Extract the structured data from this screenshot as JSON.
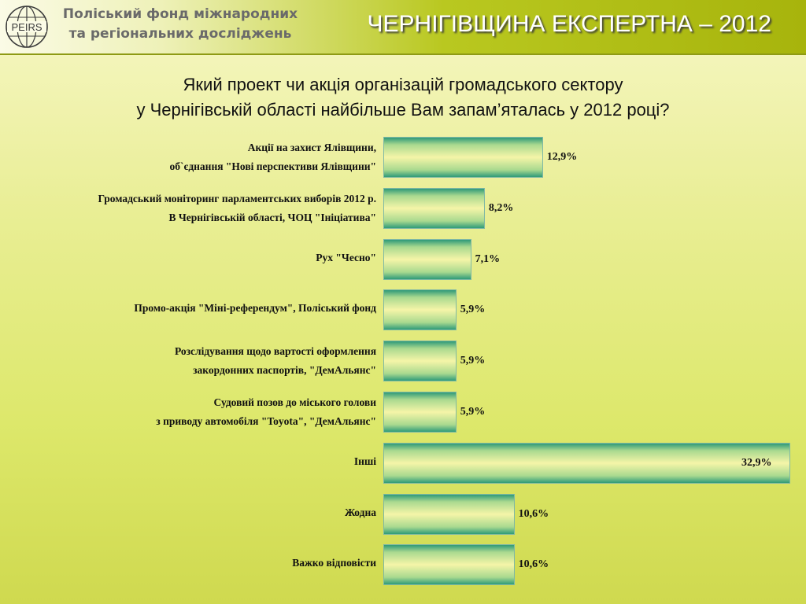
{
  "header": {
    "logo_text": "PEIRS",
    "org_line1": "Поліський фонд міжнародних",
    "org_line2": "та регіональних досліджень",
    "title": "ЧЕРНІГІВЩИНА ЕКСПЕРТНА – 2012"
  },
  "question": {
    "line1": "Який проект чи акція організацій громадського сектору",
    "line2": "у Чернігівській області найбільше Вам запам’яталась у 2012 році?"
  },
  "chart_data": {
    "type": "bar",
    "orientation": "horizontal",
    "categories": [
      [
        "Акції на захист Ялівщини,",
        "об`єднання \"Нові перспективи Ялівщини\""
      ],
      [
        "Громадський моніторинг парламентських виборів 2012 р.",
        "В Чернігівській області, ЧОЦ \"Ініціатива\""
      ],
      [
        "Рух \"Чесно\""
      ],
      [
        "Промо-акція \"Міні-референдум\", Поліський фонд"
      ],
      [
        "Розслідування щодо вартості оформлення",
        "закордонних паспортів, \"ДемАльянс\""
      ],
      [
        "Судовий позов до міського голови",
        "з приводу автомобіля \"Toyota\", \"ДемАльянс\""
      ],
      [
        "Інші"
      ],
      [
        "Жодна"
      ],
      [
        "Важко відповісти"
      ]
    ],
    "values": [
      12.9,
      8.2,
      7.1,
      5.9,
      5.9,
      5.9,
      32.9,
      10.6,
      10.6
    ],
    "value_labels": [
      "12,9%",
      "8,2%",
      "7,1%",
      "5,9%",
      "5,9%",
      "5,9%",
      "32,9%",
      "10,6%",
      "10,6%"
    ],
    "unit": "%",
    "grid": false
  }
}
